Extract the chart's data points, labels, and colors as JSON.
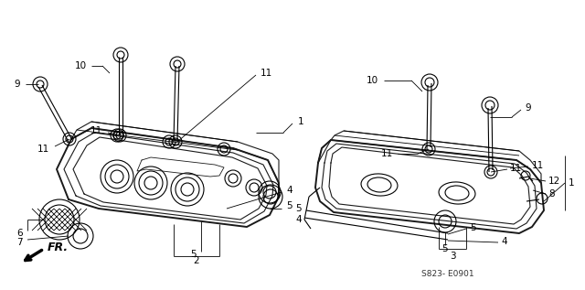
{
  "bg_color": "#ffffff",
  "line_color": "#1a1a1a",
  "fig_width": 6.4,
  "fig_height": 3.17,
  "dpi": 100,
  "watermark": "S823- E0901",
  "fr_label": "FR."
}
